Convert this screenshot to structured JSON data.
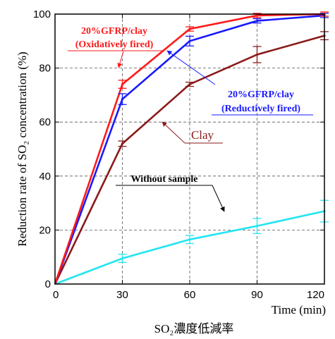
{
  "chart_data": {
    "type": "line",
    "title": "",
    "xlabel": "Time (min)",
    "ylabel": "Reduction rate of SO₂ concentration (%)",
    "caption": "SO₂濃度低減率",
    "xlim": [
      0,
      120
    ],
    "ylim": [
      0,
      100
    ],
    "xticks": [
      "0",
      "30",
      "60",
      "90",
      "120"
    ],
    "yticks": [
      "0",
      "20",
      "40",
      "60",
      "80",
      "100"
    ],
    "grid": true,
    "legend": "none",
    "series": [
      {
        "name": "20%GFRP/clay (Oxidatively fired)",
        "label_lines": [
          "20%GFRP/clay",
          "(Oxidatively fired)"
        ],
        "color": "#ff1a1a",
        "x": [
          0,
          30,
          60,
          90,
          120
        ],
        "y": [
          0,
          74,
          94.5,
          99.5,
          100
        ],
        "err": [
          0,
          1.5,
          0.8,
          0.5,
          0.3
        ]
      },
      {
        "name": "20%GFRP/clay (Reductively fired)",
        "label_lines": [
          "20%GFRP/clay",
          "(Reductively fired)"
        ],
        "color": "#1a1aff",
        "x": [
          0,
          30,
          60,
          90,
          120
        ],
        "y": [
          0,
          68.5,
          90,
          97.5,
          99.5
        ],
        "err": [
          0,
          2,
          1.8,
          0.8,
          0.5
        ]
      },
      {
        "name": "Clay",
        "label_lines": [
          "Clay"
        ],
        "color": "#8b1a1a",
        "x": [
          0,
          30,
          60,
          90,
          120
        ],
        "y": [
          0,
          52,
          74,
          85,
          92
        ],
        "err": [
          0,
          1,
          0.6,
          3,
          1.5
        ]
      },
      {
        "name": "Without sample",
        "label_lines": [
          "Without sample"
        ],
        "color": "#22e5f0",
        "x": [
          0,
          30,
          60,
          90,
          120
        ],
        "y": [
          0,
          9.5,
          16.5,
          21.5,
          27
        ],
        "err": [
          0,
          1.5,
          1.5,
          2.8,
          4
        ]
      }
    ]
  }
}
